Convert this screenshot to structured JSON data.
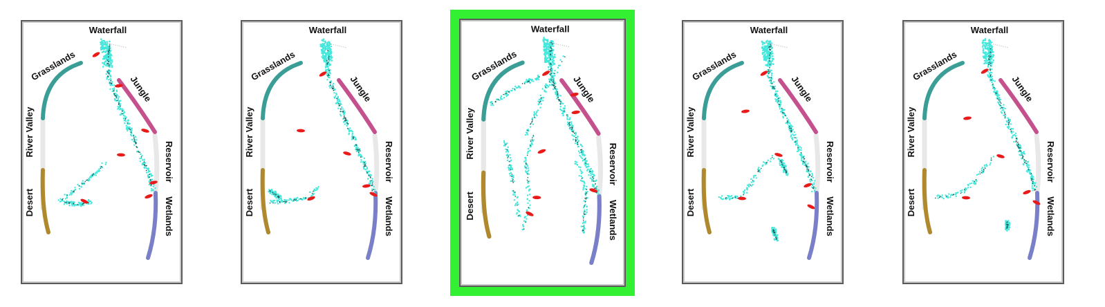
{
  "labels": {
    "waterfall": "Waterfall",
    "grasslands": "Grasslands",
    "jungle": "Jungle",
    "river_valley": "River Valley",
    "reservoir": "Reservoir",
    "desert": "Desert",
    "wetlands": "Wetlands"
  },
  "colors": {
    "highlight": "#33f033",
    "grasslands": "#3a9e96",
    "jungle": "#c4508e",
    "desert": "#b0892e",
    "wetlands": "#7a80c8",
    "neutral_track": "#e8e8e8",
    "trail_cyan": "#44e8dc",
    "trail_dark": "#1e5c58",
    "event_red": "#e81a1a"
  },
  "panels": [
    {
      "id": "panel-1",
      "highlighted": false
    },
    {
      "id": "panel-2",
      "highlighted": false
    },
    {
      "id": "panel-3",
      "highlighted": true
    },
    {
      "id": "panel-4",
      "highlighted": false
    },
    {
      "id": "panel-5",
      "highlighted": false
    }
  ]
}
